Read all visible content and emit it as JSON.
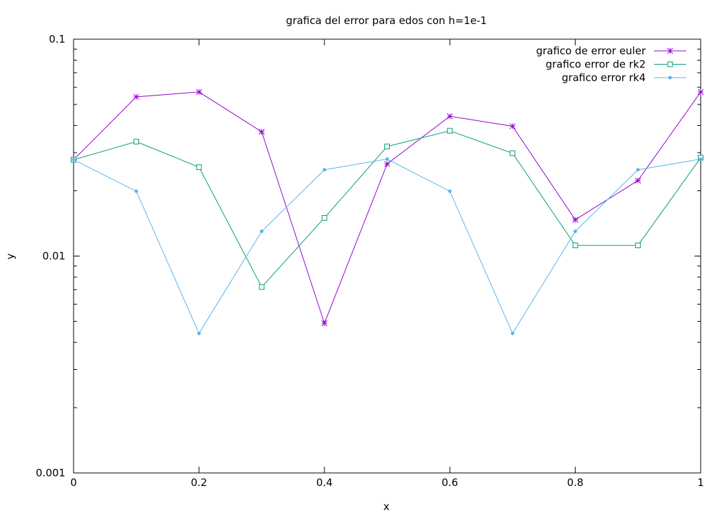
{
  "chart_data": {
    "type": "line",
    "title": "grafica del error para edos con h=1e-1",
    "xlabel": "x",
    "ylabel": "y",
    "xlim": [
      0,
      1
    ],
    "ylim": [
      0.001,
      0.1
    ],
    "yscale": "log",
    "grid": false,
    "legend_position": "top-right",
    "x_ticks": [
      0,
      0.2,
      0.4,
      0.6,
      0.8,
      1
    ],
    "x_tick_labels": [
      "0",
      "0.2",
      "0.4",
      "0.6",
      "0.8",
      "1"
    ],
    "y_ticks": [
      0.001,
      0.01,
      0.1
    ],
    "y_tick_labels": [
      "0.001",
      "0.01",
      "0.1"
    ],
    "x": [
      0,
      0.1,
      0.2,
      0.3,
      0.4,
      0.5,
      0.6,
      0.7,
      0.8,
      0.9,
      1.0
    ],
    "series": [
      {
        "name": "grafico de error euler",
        "color": "#9400d3",
        "marker": "star",
        "values": [
          0.0278,
          0.0542,
          0.0571,
          0.0374,
          0.0049,
          0.0266,
          0.0441,
          0.0397,
          0.0147,
          0.0223,
          0.0571
        ]
      },
      {
        "name": "grafico error de rk2",
        "color": "#009e73",
        "marker": "open-square",
        "values": [
          0.0278,
          0.0337,
          0.0257,
          0.0072,
          0.015,
          0.032,
          0.0378,
          0.0298,
          0.0112,
          0.0112,
          0.0284
        ]
      },
      {
        "name": "grafico error rk4",
        "color": "#56b4e9",
        "marker": "filled-circle",
        "values": [
          0.0278,
          0.0199,
          0.0044,
          0.013,
          0.025,
          0.028,
          0.0199,
          0.0044,
          0.013,
          0.025,
          0.028
        ]
      }
    ]
  }
}
